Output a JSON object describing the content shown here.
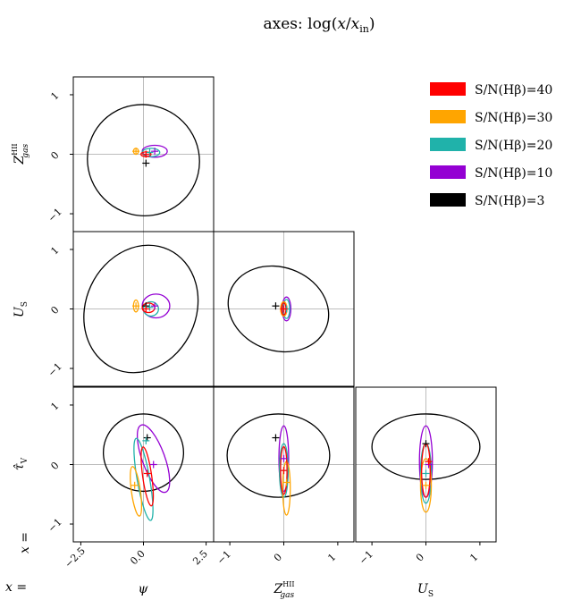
{
  "chart_data": {
    "type": "scatter",
    "title": "axes: log(x/x_in)",
    "title_parts": {
      "main": "axes: log(",
      "x1": "x",
      "slash": "/",
      "x2": "x",
      "sub": "in",
      "end": ")"
    },
    "row_prefix": "x =",
    "col_prefix": "x =",
    "columns": [
      {
        "label": "ψ",
        "ticks": [
          "−2.5",
          "0.0",
          "2.5"
        ],
        "tick_values": [
          -2.5,
          0,
          2.5
        ],
        "range": [
          -2.8,
          2.8
        ]
      },
      {
        "label": "Z",
        "sup": "HII",
        "sub": "gas",
        "ticks": [
          "−1",
          "0",
          "1"
        ],
        "tick_values": [
          -1,
          0,
          1
        ],
        "range": [
          -1.3,
          1.3
        ]
      },
      {
        "label": "U",
        "sub": "S",
        "ticks": [
          "−1",
          "0",
          "1"
        ],
        "tick_values": [
          -1,
          0,
          1
        ],
        "range": [
          -1.3,
          1.3
        ]
      }
    ],
    "rows": [
      {
        "label": "Z",
        "sup": "HII",
        "sub": "gas",
        "ticks": [
          "1",
          "0",
          "−1"
        ],
        "tick_values": [
          1,
          0,
          -1
        ],
        "range": [
          -1.3,
          1.3
        ]
      },
      {
        "label": "U",
        "sub": "S",
        "ticks": [
          "1",
          "0",
          "−1"
        ],
        "tick_values": [
          1,
          0,
          -1
        ],
        "range": [
          -1.3,
          1.3
        ]
      },
      {
        "label": "τ̂",
        "sub": "V",
        "ticks": [
          "1",
          "0",
          "−1"
        ],
        "tick_values": [
          1,
          0,
          -1
        ],
        "range": [
          -1.3,
          1.3
        ]
      }
    ],
    "series": [
      {
        "name": "S/N(Hβ)=40",
        "color": "#ff0000"
      },
      {
        "name": "S/N(Hβ)=30",
        "color": "#ffa500"
      },
      {
        "name": "S/N(Hβ)=20",
        "color": "#20b2aa"
      },
      {
        "name": "S/N(Hβ)=10",
        "color": "#9400d3"
      },
      {
        "name": "S/N(Hβ)=3",
        "color": "#000000"
      }
    ],
    "legend_position": "top-right",
    "panels": [
      {
        "row": 0,
        "col": 0,
        "ellipses": [
          {
            "s": 4,
            "cx": 0.0,
            "cy": -0.1,
            "rx": 2.2,
            "ry": 0.95,
            "angle": 55
          },
          {
            "s": 3,
            "cx": 0.45,
            "cy": 0.05,
            "rx": 0.5,
            "ry": 0.1,
            "angle": 0
          },
          {
            "s": 2,
            "cx": 0.3,
            "cy": 0.03,
            "rx": 0.35,
            "ry": 0.07,
            "angle": 0
          },
          {
            "s": 1,
            "cx": -0.3,
            "cy": 0.05,
            "rx": 0.1,
            "ry": 0.05,
            "angle": 0
          },
          {
            "s": 0,
            "cx": 0.1,
            "cy": 0.0,
            "rx": 0.2,
            "ry": 0.04,
            "angle": 0
          }
        ],
        "markers": [
          {
            "s": 4,
            "x": 0.1,
            "y": -0.15
          },
          {
            "s": 3,
            "x": 0.45,
            "y": 0.05
          },
          {
            "s": 2,
            "x": 0.25,
            "y": 0.03
          },
          {
            "s": 1,
            "x": -0.3,
            "y": 0.05
          },
          {
            "s": 0,
            "x": 0.1,
            "y": 0.0
          }
        ]
      },
      {
        "row": 1,
        "col": 0,
        "ellipses": [
          {
            "s": 4,
            "cx": -0.1,
            "cy": 0.0,
            "rx": 2.2,
            "ry": 1.1,
            "angle": -25
          },
          {
            "s": 3,
            "cx": 0.5,
            "cy": 0.05,
            "rx": 0.55,
            "ry": 0.2,
            "angle": 0
          },
          {
            "s": 2,
            "cx": 0.3,
            "cy": 0.0,
            "rx": 0.3,
            "ry": 0.12,
            "angle": 0
          },
          {
            "s": 1,
            "cx": -0.3,
            "cy": 0.05,
            "rx": 0.1,
            "ry": 0.1,
            "angle": 0
          },
          {
            "s": 0,
            "cx": 0.2,
            "cy": 0.02,
            "rx": 0.25,
            "ry": 0.08,
            "angle": 0
          }
        ],
        "markers": [
          {
            "s": 4,
            "x": 0.1,
            "y": 0.05
          },
          {
            "s": 3,
            "x": 0.45,
            "y": 0.05
          },
          {
            "s": 2,
            "x": 0.25,
            "y": 0.03
          },
          {
            "s": 1,
            "x": -0.3,
            "y": 0.05
          },
          {
            "s": 0,
            "x": 0.1,
            "y": 0.0
          }
        ]
      },
      {
        "row": 1,
        "col": 1,
        "ellipses": [
          {
            "s": 4,
            "cx": -0.1,
            "cy": 0.0,
            "rx": 0.95,
            "ry": 0.7,
            "angle": -20
          },
          {
            "s": 3,
            "cx": 0.05,
            "cy": 0.0,
            "rx": 0.08,
            "ry": 0.2,
            "angle": 0
          },
          {
            "s": 2,
            "cx": 0.05,
            "cy": 0.0,
            "rx": 0.06,
            "ry": 0.16,
            "angle": 0
          },
          {
            "s": 1,
            "cx": 0.0,
            "cy": 0.0,
            "rx": 0.06,
            "ry": 0.12,
            "angle": 0
          },
          {
            "s": 0,
            "cx": 0.0,
            "cy": 0.0,
            "rx": 0.04,
            "ry": 0.1,
            "angle": 0
          }
        ],
        "markers": [
          {
            "s": 4,
            "x": -0.15,
            "y": 0.05
          },
          {
            "s": 3,
            "x": 0.05,
            "y": 0.0
          },
          {
            "s": 2,
            "x": 0.05,
            "y": 0.0
          },
          {
            "s": 1,
            "x": 0.0,
            "y": 0.0
          },
          {
            "s": 0,
            "x": 0.0,
            "y": 0.0
          }
        ]
      },
      {
        "row": 2,
        "col": 0,
        "ellipses": [
          {
            "s": 4,
            "cx": 0.0,
            "cy": 0.2,
            "rx": 1.6,
            "ry": 0.65,
            "angle": 0
          },
          {
            "s": 3,
            "cx": 0.4,
            "cy": 0.1,
            "rx": 0.45,
            "ry": 0.6,
            "angle": 20
          },
          {
            "s": 2,
            "cx": 0.0,
            "cy": -0.25,
            "rx": 0.25,
            "ry": 0.7,
            "angle": 10
          },
          {
            "s": 1,
            "cx": -0.3,
            "cy": -0.45,
            "rx": 0.18,
            "ry": 0.42,
            "angle": 8
          },
          {
            "s": 0,
            "cx": 0.15,
            "cy": -0.2,
            "rx": 0.18,
            "ry": 0.5,
            "angle": 8
          }
        ],
        "markers": [
          {
            "s": 4,
            "x": 0.15,
            "y": 0.45
          },
          {
            "s": 3,
            "x": 0.4,
            "y": 0.0
          },
          {
            "s": 2,
            "x": 0.1,
            "y": 0.4
          },
          {
            "s": 1,
            "x": -0.35,
            "y": -0.35
          },
          {
            "s": 0,
            "x": 0.15,
            "y": -0.15
          }
        ]
      },
      {
        "row": 2,
        "col": 1,
        "ellipses": [
          {
            "s": 4,
            "cx": -0.1,
            "cy": 0.15,
            "rx": 0.95,
            "ry": 0.7,
            "angle": 0
          },
          {
            "s": 3,
            "cx": 0.0,
            "cy": 0.1,
            "rx": 0.09,
            "ry": 0.55,
            "angle": 0
          },
          {
            "s": 2,
            "cx": 0.0,
            "cy": -0.1,
            "rx": 0.08,
            "ry": 0.45,
            "angle": 0
          },
          {
            "s": 1,
            "cx": 0.05,
            "cy": -0.4,
            "rx": 0.07,
            "ry": 0.45,
            "angle": 0
          },
          {
            "s": 0,
            "cx": 0.0,
            "cy": -0.1,
            "rx": 0.06,
            "ry": 0.4,
            "angle": 0
          }
        ],
        "markers": [
          {
            "s": 4,
            "x": -0.15,
            "y": 0.45
          },
          {
            "s": 3,
            "x": 0.0,
            "y": 0.1
          },
          {
            "s": 2,
            "x": 0.0,
            "y": -0.1
          },
          {
            "s": 1,
            "x": 0.05,
            "y": -0.3
          },
          {
            "s": 0,
            "x": 0.0,
            "y": -0.1
          }
        ]
      },
      {
        "row": 2,
        "col": 2,
        "ellipses": [
          {
            "s": 4,
            "cx": 0.0,
            "cy": 0.3,
            "rx": 1.0,
            "ry": 0.55,
            "angle": 0
          },
          {
            "s": 3,
            "cx": 0.0,
            "cy": 0.05,
            "rx": 0.12,
            "ry": 0.6,
            "angle": 0
          },
          {
            "s": 2,
            "cx": 0.0,
            "cy": -0.15,
            "rx": 0.1,
            "ry": 0.5,
            "angle": 0
          },
          {
            "s": 1,
            "cx": 0.0,
            "cy": -0.35,
            "rx": 0.1,
            "ry": 0.45,
            "angle": 0
          },
          {
            "s": 0,
            "cx": 0.0,
            "cy": -0.1,
            "rx": 0.08,
            "ry": 0.45,
            "angle": 0
          }
        ],
        "markers": [
          {
            "s": 4,
            "x": 0.0,
            "y": 0.35
          },
          {
            "s": 3,
            "x": 0.05,
            "y": 0.0
          },
          {
            "s": 2,
            "x": 0.0,
            "y": -0.15
          },
          {
            "s": 1,
            "x": 0.0,
            "y": -0.35
          },
          {
            "s": 0,
            "x": 0.05,
            "y": 0.05
          }
        ]
      }
    ]
  }
}
